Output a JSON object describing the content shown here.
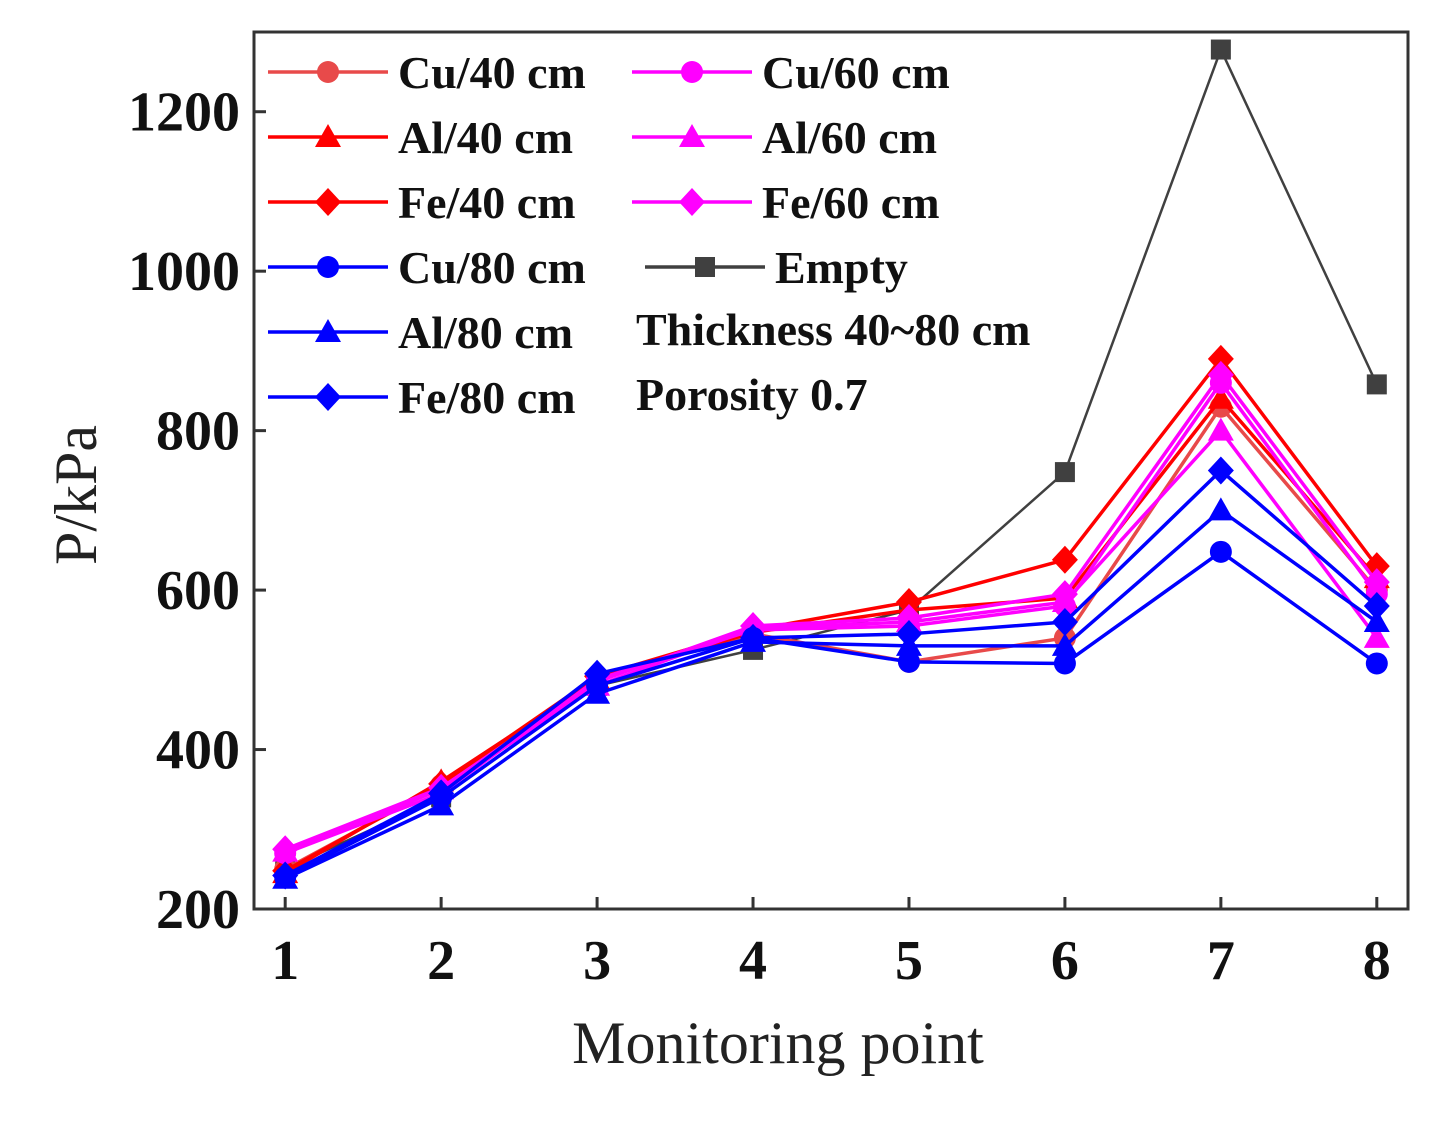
{
  "chart_data": {
    "type": "line",
    "xlabel": "Monitoring point",
    "ylabel": "P/kPa",
    "categories": [
      "1",
      "2",
      "3",
      "4",
      "5",
      "6",
      "7",
      "8"
    ],
    "x": [
      1,
      2,
      3,
      4,
      5,
      6,
      7,
      8
    ],
    "xlim": [
      0.8,
      8.2
    ],
    "ylim": [
      200,
      1300
    ],
    "yticks": [
      200,
      400,
      600,
      800,
      1000,
      1200
    ],
    "ytick_labels": [
      "200",
      "400",
      "600",
      "800",
      "1000",
      "1200"
    ],
    "grid": false,
    "legend_position": "top-left",
    "annotations": [
      "Thickness 40~80 cm",
      "Porosity 0.7"
    ],
    "series": [
      {
        "name": "Cu/40 cm",
        "color": "#e84a4a",
        "marker": "circle",
        "values": [
          250,
          355,
          490,
          545,
          510,
          540,
          830,
          600
        ]
      },
      {
        "name": "Al/40 cm",
        "color": "#ff0000",
        "marker": "triangle",
        "values": [
          245,
          360,
          488,
          547,
          575,
          590,
          840,
          615
        ]
      },
      {
        "name": "Fe/40 cm",
        "color": "#ff0000",
        "marker": "diamond",
        "values": [
          248,
          357,
          492,
          550,
          585,
          638,
          890,
          630
        ]
      },
      {
        "name": "Cu/60 cm",
        "color": "#ff00ff",
        "marker": "circle",
        "values": [
          270,
          345,
          488,
          550,
          555,
          580,
          860,
          595
        ]
      },
      {
        "name": "Al/60 cm",
        "color": "#ff00ff",
        "marker": "triangle",
        "values": [
          272,
          350,
          480,
          552,
          560,
          585,
          800,
          540
        ]
      },
      {
        "name": "Fe/60 cm",
        "color": "#ff00ff",
        "marker": "diamond",
        "values": [
          275,
          352,
          485,
          555,
          565,
          595,
          870,
          610
        ]
      },
      {
        "name": "Cu/80 cm",
        "color": "#0000ff",
        "marker": "circle",
        "values": [
          240,
          340,
          480,
          540,
          510,
          508,
          648,
          508
        ]
      },
      {
        "name": "Al/80 cm",
        "color": "#0000ff",
        "marker": "triangle",
        "values": [
          238,
          330,
          470,
          535,
          530,
          530,
          700,
          560
        ]
      },
      {
        "name": "Fe/80 cm",
        "color": "#0000ff",
        "marker": "diamond",
        "values": [
          242,
          345,
          495,
          540,
          545,
          560,
          750,
          580
        ]
      },
      {
        "name": "Empty",
        "color": "#404040",
        "marker": "square",
        "values": [
          250,
          340,
          480,
          525,
          575,
          748,
          1278,
          858
        ]
      }
    ]
  }
}
